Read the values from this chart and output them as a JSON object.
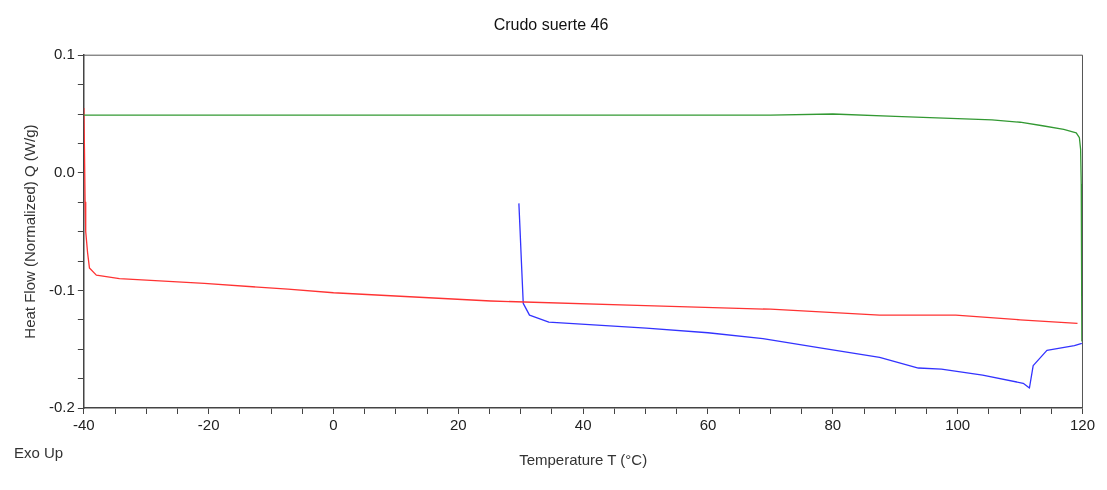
{
  "chart_data": {
    "type": "line",
    "title": "Crudo suerte 46",
    "xlabel": "Temperature T (°C)",
    "ylabel": "Heat Flow (Normalized) Q (W/g)",
    "annotations": [
      "Exo Up"
    ],
    "xlim": [
      -40,
      120
    ],
    "xticks": [
      -40,
      {
        "value": -35,
        "label": null
      },
      {
        "value": -30,
        "label": null
      },
      {
        "value": -25,
        "label": null
      },
      -20,
      {
        "value": -15,
        "label": null
      },
      {
        "value": -10,
        "label": null
      },
      {
        "value": -5,
        "label": null
      },
      0,
      {
        "value": 5,
        "label": null
      },
      {
        "value": 10,
        "label": null
      },
      {
        "value": 15,
        "label": null
      },
      20,
      {
        "value": 25,
        "label": null
      },
      {
        "value": 30,
        "label": null
      },
      {
        "value": 35,
        "label": null
      },
      40,
      {
        "value": 45,
        "label": null
      },
      {
        "value": 50,
        "label": null
      },
      {
        "value": 55,
        "label": null
      },
      60,
      {
        "value": 65,
        "label": null
      },
      {
        "value": 70,
        "label": null
      },
      {
        "value": 75,
        "label": null
      },
      80,
      {
        "value": 85,
        "label": null
      },
      {
        "value": 90,
        "label": null
      },
      {
        "value": 95,
        "label": null
      },
      100,
      {
        "value": 105,
        "label": null
      },
      {
        "value": 110,
        "label": null
      },
      {
        "value": 115,
        "label": null
      },
      120
    ],
    "ylim": [
      -0.2,
      0.1
    ],
    "yticks": [
      {
        "value": -0.2,
        "label": "-0.2"
      },
      {
        "value": -0.175,
        "label": null
      },
      {
        "value": -0.15,
        "label": null
      },
      {
        "value": -0.125,
        "label": null
      },
      {
        "value": -0.1,
        "label": "-0.1"
      },
      {
        "value": -0.075,
        "label": null
      },
      {
        "value": -0.05,
        "label": null
      },
      {
        "value": -0.025,
        "label": null
      },
      {
        "value": 0,
        "label": "0.0"
      },
      {
        "value": 0.025,
        "label": null
      },
      {
        "value": 0.05,
        "label": null
      },
      {
        "value": 0.075,
        "label": null
      },
      {
        "value": 0.1,
        "label": "0.1"
      }
    ],
    "grid": false,
    "legend": false,
    "marker": "none",
    "line_style": "solid",
    "series": [
      {
        "color": "#339933",
        "x": [
          -40,
          -20,
          0,
          20,
          40,
          60,
          70,
          80,
          90,
          100,
          105.5,
          110,
          113.6,
          117,
          119,
          119.5,
          119.7,
          119.8,
          119.9
        ],
        "values": [
          0.049,
          0.049,
          0.049,
          0.049,
          0.049,
          0.049,
          0.049,
          0.05,
          0.048,
          0.046,
          0.045,
          0.043,
          0.04,
          0.037,
          0.034,
          0.03,
          0.02,
          -0.01,
          -0.143
        ]
      },
      {
        "color": "#ff3333",
        "x": [
          -40,
          -39.9,
          -39.8,
          -39.7,
          -39.4,
          -39.1,
          -38,
          -34.3,
          -20.7,
          -7.3,
          0,
          25.2,
          50,
          70,
          87.5,
          99.7,
          110,
          119.2
        ],
        "values": [
          0.055,
          0.02,
          -0.025,
          -0.05,
          -0.068,
          -0.081,
          -0.087,
          -0.09,
          -0.094,
          -0.099,
          -0.102,
          -0.109,
          -0.113,
          -0.116,
          -0.121,
          -0.121,
          -0.125,
          -0.128
        ]
      },
      {
        "color": "#3333ff",
        "x": [
          29.7,
          29.9,
          30.1,
          30.4,
          31.4,
          34.5,
          50.1,
          60,
          68.8,
          78.2,
          87.5,
          93.7,
          97.4,
          104,
          110.5,
          111.5,
          112.1,
          114.3,
          118.7,
          119.9
        ],
        "values": [
          -0.026,
          -0.05,
          -0.075,
          -0.111,
          -0.121,
          -0.127,
          -0.132,
          -0.136,
          -0.141,
          -0.149,
          -0.157,
          -0.166,
          -0.167,
          -0.172,
          -0.179,
          -0.183,
          -0.164,
          -0.151,
          -0.147,
          -0.145
        ]
      }
    ]
  }
}
